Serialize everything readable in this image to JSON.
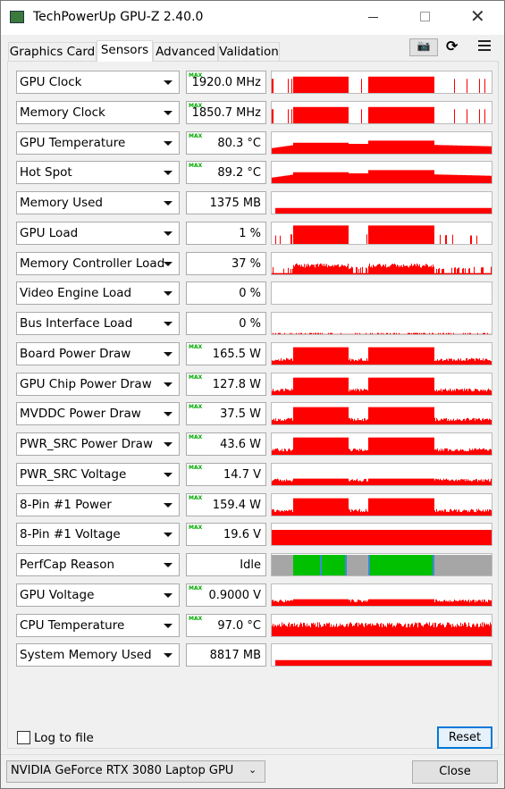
{
  "window": {
    "title": "TechPowerUp GPU-Z 2.40.0"
  },
  "tabs": [
    "Graphics Card",
    "Sensors",
    "Advanced",
    "Validation"
  ],
  "active_tab": 1,
  "max_label": "MAX",
  "sensors": [
    {
      "label": "GPU Clock",
      "value": "1920.0 MHz",
      "max": true
    },
    {
      "label": "Memory Clock",
      "value": "1850.7 MHz",
      "max": true
    },
    {
      "label": "GPU Temperature",
      "value": "80.3 °C",
      "max": true
    },
    {
      "label": "Hot Spot",
      "value": "89.2 °C",
      "max": true
    },
    {
      "label": "Memory Used",
      "value": "1375 MB",
      "max": false
    },
    {
      "label": "GPU Load",
      "value": "1 %",
      "max": false
    },
    {
      "label": "Memory Controller Load",
      "value": "37 %",
      "max": false
    },
    {
      "label": "Video Engine Load",
      "value": "0 %",
      "max": false
    },
    {
      "label": "Bus Interface Load",
      "value": "0 %",
      "max": false
    },
    {
      "label": "Board Power Draw",
      "value": "165.5 W",
      "max": true
    },
    {
      "label": "GPU Chip Power Draw",
      "value": "127.8 W",
      "max": true
    },
    {
      "label": "MVDDC Power Draw",
      "value": "37.5 W",
      "max": true
    },
    {
      "label": "PWR_SRC Power Draw",
      "value": "43.6 W",
      "max": true
    },
    {
      "label": "PWR_SRC Voltage",
      "value": "14.7 V",
      "max": true
    },
    {
      "label": "8-Pin #1 Power",
      "value": "159.4 W",
      "max": true
    },
    {
      "label": "8-Pin #1 Voltage",
      "value": "19.6 V",
      "max": true
    },
    {
      "label": "PerfCap Reason",
      "value": "Idle",
      "max": false
    },
    {
      "label": "GPU Voltage",
      "value": "0.9000 V",
      "max": true
    },
    {
      "label": "CPU Temperature",
      "value": "97.0 °C",
      "max": true
    },
    {
      "label": "System Memory Used",
      "value": "8817 MB",
      "max": false
    }
  ],
  "footer": {
    "log_label": "Log to file",
    "reset": "Reset",
    "gpu_select": "NVIDIA GeForce RTX 3080 Laptop GPU",
    "close": "Close"
  }
}
